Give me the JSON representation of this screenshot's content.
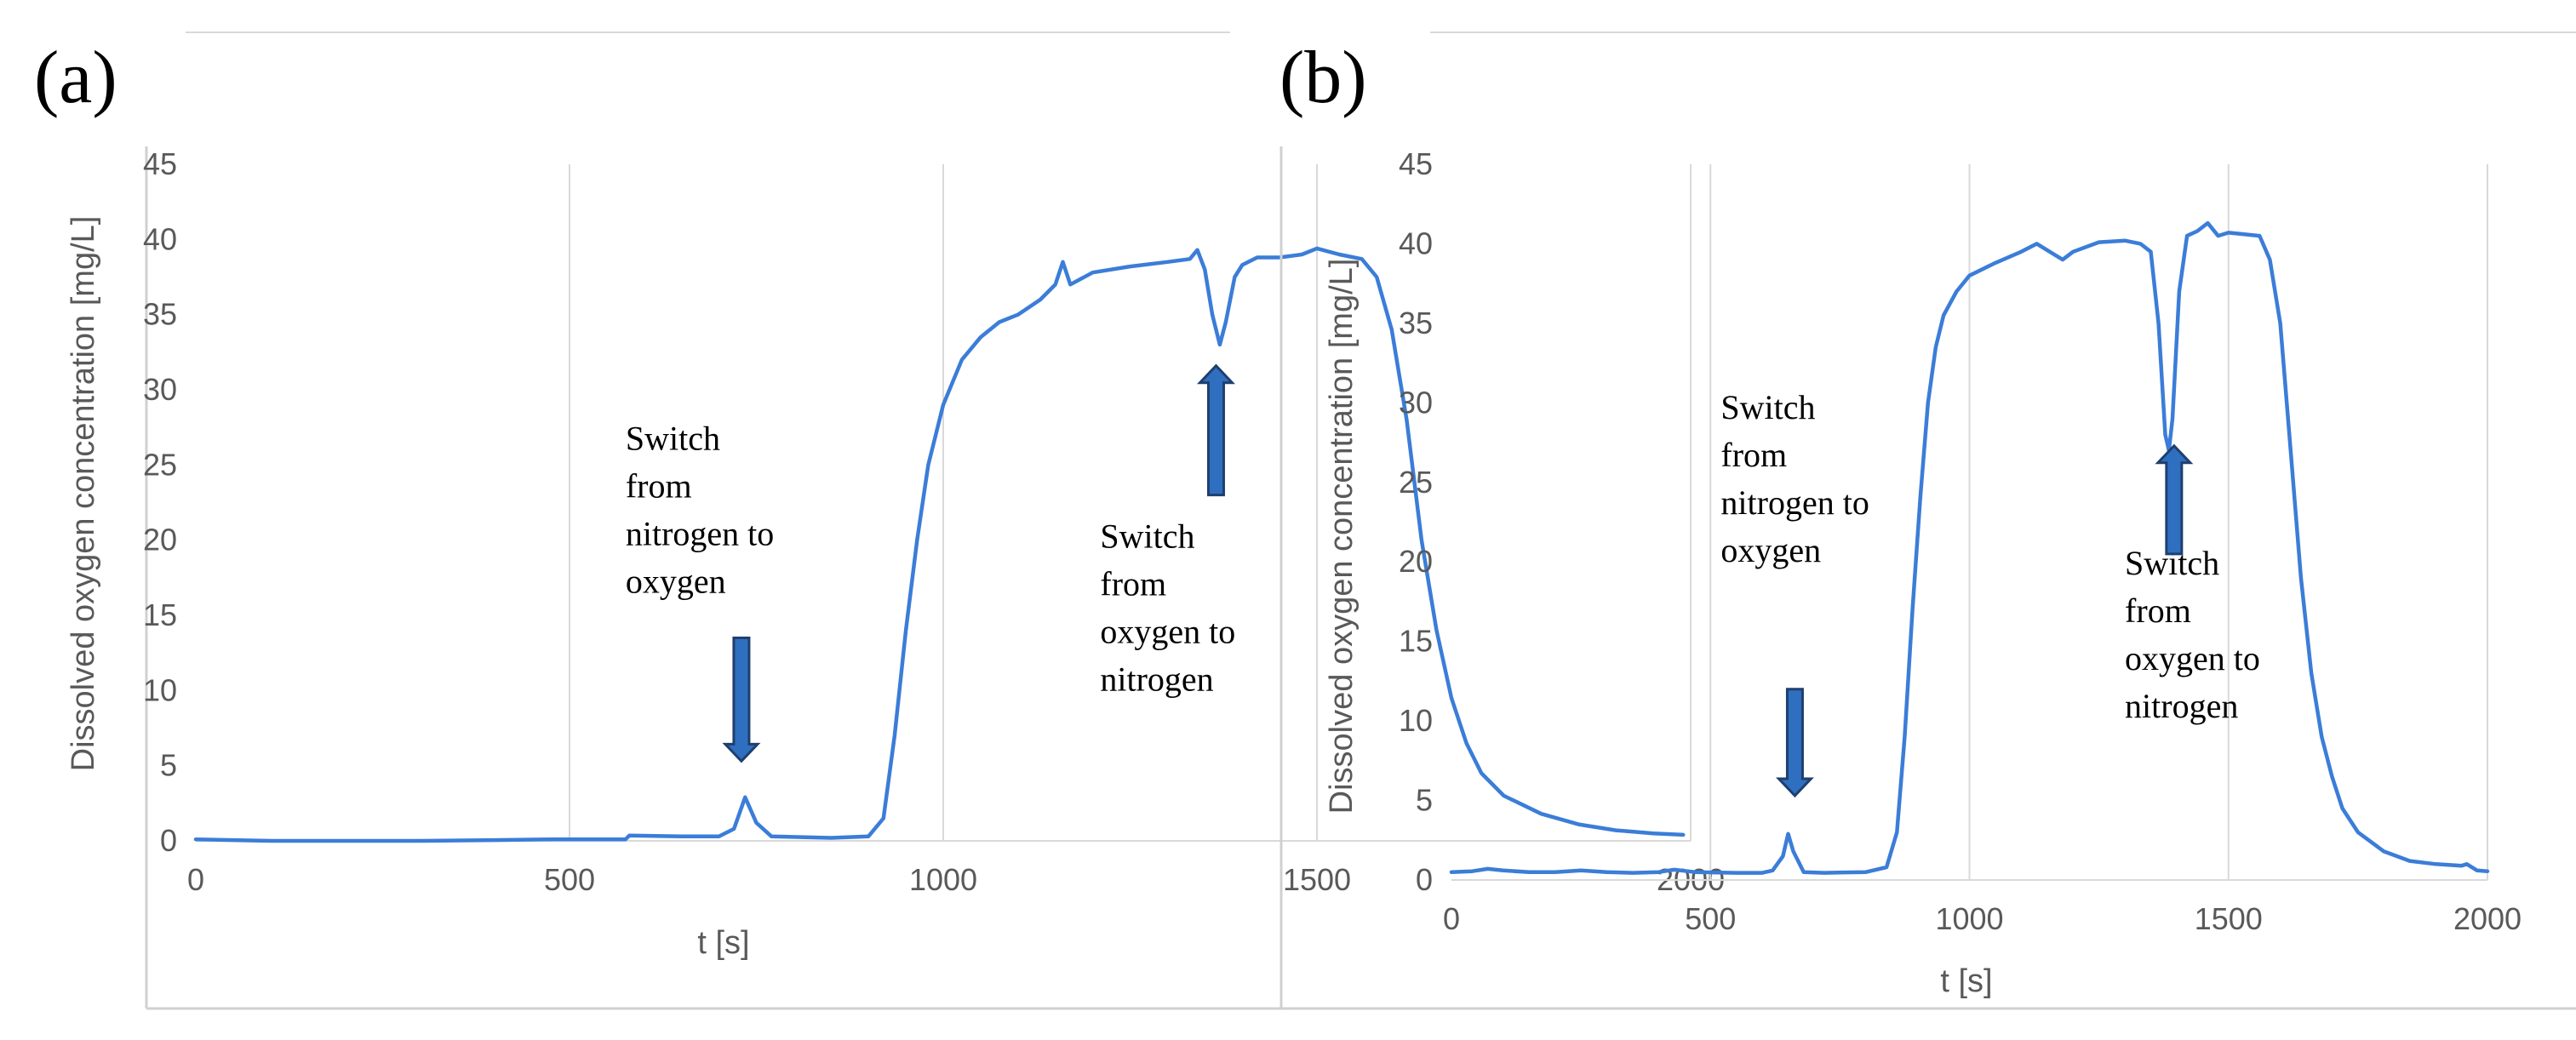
{
  "chart_data": [
    {
      "panel": "(a)",
      "type": "line",
      "xlabel": "t [s]",
      "ylabel": "Dissolved oxygen concentration [mg/L]",
      "xlim": [
        0,
        2000
      ],
      "ylim": [
        0,
        45
      ],
      "x_ticks": [
        0,
        500,
        1000,
        1500,
        2000
      ],
      "y_ticks": [
        0,
        5,
        10,
        15,
        20,
        25,
        30,
        35,
        40,
        45
      ],
      "grid": "vertical",
      "color": "#3b7dd8",
      "series": [
        {
          "points": [
            [
              0,
              0.1
            ],
            [
              100,
              0.0
            ],
            [
              200,
              0.0
            ],
            [
              300,
              0.0
            ],
            [
              400,
              0.05
            ],
            [
              480,
              0.1
            ],
            [
              575,
              0.1
            ],
            [
              580,
              0.35
            ],
            [
              650,
              0.3
            ],
            [
              700,
              0.3
            ],
            [
              720,
              0.8
            ],
            [
              735,
              2.9
            ],
            [
              750,
              1.2
            ],
            [
              770,
              0.3
            ],
            [
              850,
              0.2
            ],
            [
              900,
              0.3
            ],
            [
              920,
              1.5
            ],
            [
              935,
              7
            ],
            [
              950,
              14
            ],
            [
              965,
              20
            ],
            [
              980,
              25
            ],
            [
              1000,
              29
            ],
            [
              1025,
              32
            ],
            [
              1050,
              33.5
            ],
            [
              1075,
              34.5
            ],
            [
              1100,
              35
            ],
            [
              1130,
              36
            ],
            [
              1150,
              37
            ],
            [
              1160,
              38.5
            ],
            [
              1170,
              37
            ],
            [
              1200,
              37.8
            ],
            [
              1250,
              38.2
            ],
            [
              1300,
              38.5
            ],
            [
              1330,
              38.7
            ],
            [
              1340,
              39.3
            ],
            [
              1350,
              38
            ],
            [
              1360,
              35
            ],
            [
              1370,
              33
            ],
            [
              1378,
              34.5
            ],
            [
              1390,
              37.5
            ],
            [
              1400,
              38.3
            ],
            [
              1420,
              38.8
            ],
            [
              1450,
              38.8
            ],
            [
              1480,
              39
            ],
            [
              1500,
              39.4
            ],
            [
              1530,
              39
            ],
            [
              1560,
              38.7
            ],
            [
              1580,
              37.5
            ],
            [
              1600,
              34
            ],
            [
              1620,
              28
            ],
            [
              1640,
              20
            ],
            [
              1660,
              14
            ],
            [
              1680,
              9.5
            ],
            [
              1700,
              6.5
            ],
            [
              1720,
              4.5
            ],
            [
              1750,
              3
            ],
            [
              1800,
              1.8
            ],
            [
              1850,
              1.1
            ],
            [
              1900,
              0.7
            ],
            [
              1950,
              0.5
            ],
            [
              1990,
              0.4
            ]
          ]
        }
      ],
      "annotations": [
        {
          "lines": [
            "Switch",
            "from",
            "nitrogen to",
            "oxygen"
          ],
          "x": 575,
          "y": 26,
          "arrow": {
            "direction": "down",
            "x": 730,
            "y_from": 13.5,
            "y_to": 5.3
          }
        },
        {
          "lines": [
            "Switch",
            "from",
            "oxygen to",
            "nitrogen"
          ],
          "x": 1210,
          "y": 19.5,
          "arrow": {
            "direction": "up",
            "x": 1365,
            "y_from": 23,
            "y_to": 31.6
          }
        }
      ]
    },
    {
      "panel": "(b)",
      "type": "line",
      "xlabel": "t [s]",
      "ylabel": "Dissolved oxygen concentration [mg/L]",
      "xlim": [
        0,
        2000
      ],
      "ylim": [
        0,
        45
      ],
      "x_ticks": [
        0,
        500,
        1000,
        1500,
        2000
      ],
      "y_ticks": [
        0,
        5,
        10,
        15,
        20,
        25,
        30,
        35,
        40,
        45
      ],
      "grid": "vertical",
      "color": "#3b7dd8",
      "series": [
        {
          "points": [
            [
              0,
              0.5
            ],
            [
              40,
              0.55
            ],
            [
              70,
              0.7
            ],
            [
              100,
              0.6
            ],
            [
              150,
              0.5
            ],
            [
              200,
              0.5
            ],
            [
              250,
              0.6
            ],
            [
              300,
              0.5
            ],
            [
              350,
              0.45
            ],
            [
              400,
              0.5
            ],
            [
              430,
              0.65
            ],
            [
              470,
              0.5
            ],
            [
              550,
              0.45
            ],
            [
              600,
              0.45
            ],
            [
              620,
              0.6
            ],
            [
              640,
              1.5
            ],
            [
              650,
              2.9
            ],
            [
              660,
              1.8
            ],
            [
              680,
              0.5
            ],
            [
              720,
              0.45
            ],
            [
              800,
              0.5
            ],
            [
              840,
              0.8
            ],
            [
              860,
              3
            ],
            [
              875,
              9
            ],
            [
              890,
              17
            ],
            [
              905,
              24
            ],
            [
              920,
              30
            ],
            [
              935,
              33.5
            ],
            [
              950,
              35.5
            ],
            [
              975,
              37
            ],
            [
              1000,
              38
            ],
            [
              1050,
              38.8
            ],
            [
              1100,
              39.5
            ],
            [
              1130,
              40
            ],
            [
              1160,
              39.4
            ],
            [
              1180,
              39
            ],
            [
              1200,
              39.5
            ],
            [
              1250,
              40.1
            ],
            [
              1300,
              40.2
            ],
            [
              1330,
              40
            ],
            [
              1350,
              39.5
            ],
            [
              1365,
              35
            ],
            [
              1378,
              28
            ],
            [
              1385,
              27
            ],
            [
              1392,
              29
            ],
            [
              1405,
              37
            ],
            [
              1420,
              40.5
            ],
            [
              1440,
              40.8
            ],
            [
              1460,
              41.3
            ],
            [
              1480,
              40.5
            ],
            [
              1500,
              40.7
            ],
            [
              1530,
              40.6
            ],
            [
              1560,
              40.5
            ],
            [
              1580,
              39
            ],
            [
              1600,
              35
            ],
            [
              1620,
              27
            ],
            [
              1640,
              19
            ],
            [
              1660,
              13
            ],
            [
              1680,
              9
            ],
            [
              1700,
              6.5
            ],
            [
              1720,
              4.5
            ],
            [
              1750,
              3
            ],
            [
              1800,
              1.8
            ],
            [
              1850,
              1.2
            ],
            [
              1900,
              1
            ],
            [
              1950,
              0.9
            ],
            [
              1960,
              1.0
            ],
            [
              1980,
              0.6
            ],
            [
              2000,
              0.55
            ]
          ]
        }
      ],
      "annotations": [
        {
          "lines": [
            "Switch",
            "from",
            "nitrogen to",
            "oxygen"
          ],
          "x": 520,
          "y": 29,
          "arrow": {
            "direction": "down",
            "x": 663,
            "y_from": 12,
            "y_to": 5.3
          }
        },
        {
          "lines": [
            "Switch",
            "from",
            "oxygen to",
            "nitrogen"
          ],
          "x": 1300,
          "y": 19.2,
          "arrow": {
            "direction": "up",
            "x": 1395,
            "y_from": 20.5,
            "y_to": 27.3
          }
        }
      ]
    }
  ]
}
